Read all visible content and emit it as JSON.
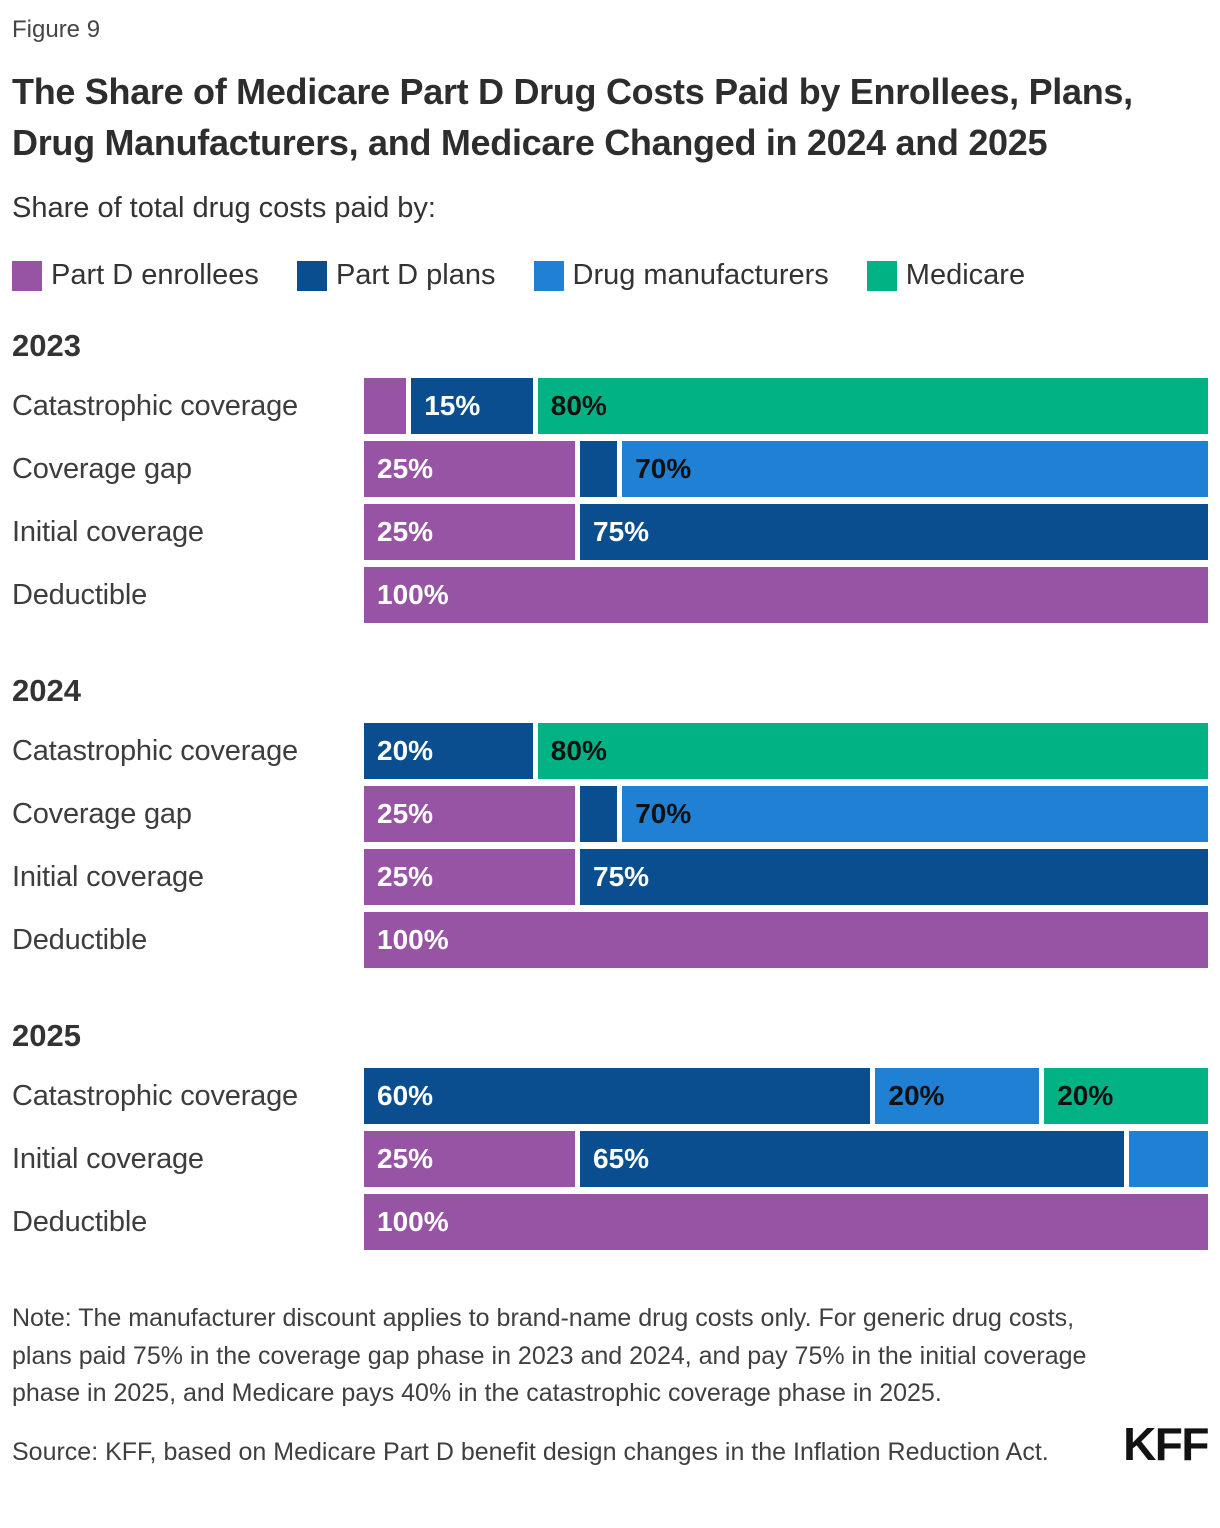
{
  "figure_label": "Figure 9",
  "title": "The Share of Medicare Part D Drug Costs Paid by Enrollees, Plans, Drug Manufacturers, and Medicare Changed in 2024 and 2025",
  "subtitle": "Share of total drug costs paid by:",
  "note": "Note: The manufacturer discount applies to brand-name drug costs only. For generic drug costs, plans paid 75% in the coverage gap phase in 2023 and 2024, and pay 75% in the initial coverage phase in 2025, and Medicare pays 40% in the catastrophic coverage phase in 2025.",
  "source": "Source: KFF, based on Medicare Part D benefit design changes in the Inflation Reduction Act.",
  "logo_text": "KFF",
  "colors": {
    "part_d_enrollees": "#9854A4",
    "part_d_plans": "#0A4E8F",
    "drug_manufacturers": "#2080D3",
    "medicare": "#00B284",
    "label_on_dark": "#FFFFFF",
    "label_on_light": "#111111"
  },
  "chart_data": {
    "type": "bar",
    "orientation": "horizontal-stacked",
    "unit": "percent share of total drug costs",
    "xlim": [
      0,
      100
    ],
    "grid": false,
    "legend_position": "top",
    "legend": [
      {
        "label": "Part D enrollees",
        "series": "part_d_enrollees"
      },
      {
        "label": "Part D plans",
        "series": "part_d_plans"
      },
      {
        "label": "Drug manufacturers",
        "series": "drug_manufacturers"
      },
      {
        "label": "Medicare",
        "series": "medicare"
      }
    ],
    "groups": [
      {
        "year": "2023",
        "rows": [
          {
            "label": "Catastrophic coverage",
            "segments": [
              {
                "series": "part_d_enrollees",
                "value": 5,
                "label": ""
              },
              {
                "series": "part_d_plans",
                "value": 15,
                "label": "15%"
              },
              {
                "series": "medicare",
                "value": 80,
                "label": "80%"
              }
            ]
          },
          {
            "label": "Coverage gap",
            "segments": [
              {
                "series": "part_d_enrollees",
                "value": 25,
                "label": "25%"
              },
              {
                "series": "part_d_plans",
                "value": 5,
                "label": ""
              },
              {
                "series": "drug_manufacturers",
                "value": 70,
                "label": "70%"
              }
            ]
          },
          {
            "label": "Initial coverage",
            "segments": [
              {
                "series": "part_d_enrollees",
                "value": 25,
                "label": "25%"
              },
              {
                "series": "part_d_plans",
                "value": 75,
                "label": "75%"
              }
            ]
          },
          {
            "label": "Deductible",
            "segments": [
              {
                "series": "part_d_enrollees",
                "value": 100,
                "label": "100%"
              }
            ]
          }
        ]
      },
      {
        "year": "2024",
        "rows": [
          {
            "label": "Catastrophic coverage",
            "segments": [
              {
                "series": "part_d_plans",
                "value": 20,
                "label": "20%"
              },
              {
                "series": "medicare",
                "value": 80,
                "label": "80%"
              }
            ]
          },
          {
            "label": "Coverage gap",
            "segments": [
              {
                "series": "part_d_enrollees",
                "value": 25,
                "label": "25%"
              },
              {
                "series": "part_d_plans",
                "value": 5,
                "label": ""
              },
              {
                "series": "drug_manufacturers",
                "value": 70,
                "label": "70%"
              }
            ]
          },
          {
            "label": "Initial coverage",
            "segments": [
              {
                "series": "part_d_enrollees",
                "value": 25,
                "label": "25%"
              },
              {
                "series": "part_d_plans",
                "value": 75,
                "label": "75%"
              }
            ]
          },
          {
            "label": "Deductible",
            "segments": [
              {
                "series": "part_d_enrollees",
                "value": 100,
                "label": "100%"
              }
            ]
          }
        ]
      },
      {
        "year": "2025",
        "rows": [
          {
            "label": "Catastrophic coverage",
            "segments": [
              {
                "series": "part_d_plans",
                "value": 60,
                "label": "60%"
              },
              {
                "series": "drug_manufacturers",
                "value": 20,
                "label": "20%"
              },
              {
                "series": "medicare",
                "value": 20,
                "label": "20%"
              }
            ]
          },
          {
            "label": "Initial coverage",
            "segments": [
              {
                "series": "part_d_enrollees",
                "value": 25,
                "label": "25%"
              },
              {
                "series": "part_d_plans",
                "value": 65,
                "label": "65%"
              },
              {
                "series": "drug_manufacturers",
                "value": 10,
                "label": ""
              }
            ]
          },
          {
            "label": "Deductible",
            "segments": [
              {
                "series": "part_d_enrollees",
                "value": 100,
                "label": "100%"
              }
            ]
          }
        ]
      }
    ]
  }
}
